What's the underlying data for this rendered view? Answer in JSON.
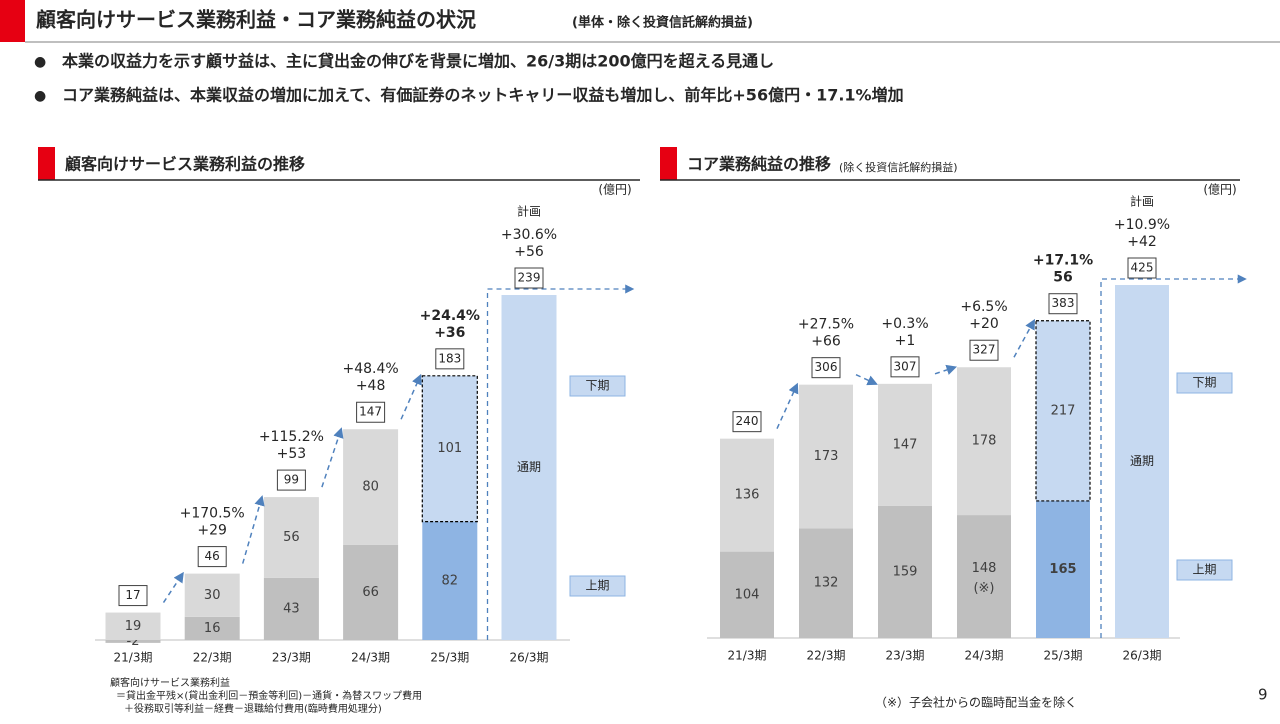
{
  "header": {
    "title": "顧客向けサービス業務利益・コア業務純益の状況",
    "subtitle": "(単体・除く投資信託解約損益)"
  },
  "bullets": [
    "本業の収益力を示す顧サ益は、主に貸出金の伸びを背景に増加、26/3期は200億円を超える見通し",
    "コア業務純益は、本業収益の増加に加えて、有価証券のネットキャリー収益も増加し、前年比+56億円・17.1%増加"
  ],
  "chart_data": [
    {
      "type": "bar",
      "stacked": true,
      "title": "顧客向けサービス業務利益の推移",
      "unit": "(億円)",
      "categories": [
        "21/3期",
        "22/3期",
        "23/3期",
        "24/3期",
        "25/3期",
        "26/3期"
      ],
      "series": [
        {
          "name": "上期",
          "values": [
            -2,
            16,
            43,
            66,
            82,
            null
          ],
          "colors": [
            "#bfbfbf",
            "#bfbfbf",
            "#bfbfbf",
            "#bfbfbf",
            "#8eb4e3",
            null
          ]
        },
        {
          "name": "下期",
          "values": [
            19,
            30,
            56,
            80,
            101,
            null
          ],
          "colors": [
            "#d9d9d9",
            "#d9d9d9",
            "#d9d9d9",
            "#d9d9d9",
            "#c6d9f1",
            null
          ]
        },
        {
          "name": "通期",
          "values": [
            null,
            null,
            null,
            null,
            null,
            239
          ],
          "colors": [
            null,
            null,
            null,
            null,
            null,
            "#c6d9f1"
          ]
        }
      ],
      "totals": [
        17,
        46,
        99,
        147,
        183,
        239
      ],
      "growth": [
        null,
        "+170.5%",
        "+115.2%",
        "+48.4%",
        "+24.4%",
        "+30.6%"
      ],
      "change": [
        null,
        "+29",
        "+53",
        "+48",
        "+36",
        "+56"
      ],
      "plan_label": "計画",
      "highlight_category": "25/3期",
      "highlight_color": "#2e75b6"
    },
    {
      "type": "bar",
      "stacked": true,
      "title": "コア業務純益の推移",
      "subtitle": "(除く投資信託解約損益)",
      "unit": "(億円)",
      "categories": [
        "21/3期",
        "22/3期",
        "23/3期",
        "24/3期",
        "25/3期",
        "26/3期"
      ],
      "series": [
        {
          "name": "上期",
          "values": [
            104,
            132,
            159,
            148,
            165,
            null
          ],
          "colors": [
            "#bfbfbf",
            "#bfbfbf",
            "#bfbfbf",
            "#bfbfbf",
            "#8eb4e3",
            null
          ],
          "value_notes": [
            null,
            null,
            null,
            "(※)",
            null,
            null
          ]
        },
        {
          "name": "下期",
          "values": [
            136,
            173,
            147,
            178,
            217,
            null
          ],
          "colors": [
            "#d9d9d9",
            "#d9d9d9",
            "#d9d9d9",
            "#d9d9d9",
            "#c6d9f1",
            null
          ]
        },
        {
          "name": "通期",
          "values": [
            null,
            null,
            null,
            null,
            null,
            425
          ],
          "colors": [
            null,
            null,
            null,
            null,
            null,
            "#c6d9f1"
          ]
        }
      ],
      "totals": [
        240,
        306,
        307,
        327,
        383,
        425
      ],
      "growth": [
        null,
        "+27.5%",
        "+0.3%",
        "+6.5%",
        "+17.1%",
        "+10.9%"
      ],
      "change": [
        null,
        "+66",
        "+1",
        "+20",
        "56",
        "+42"
      ],
      "plan_label": "計画",
      "highlight_category": "25/3期",
      "highlight_color": "#2e75b6"
    }
  ],
  "footnotes": {
    "left": [
      "顧客向けサービス業務利益",
      "＝貸出金平残×(貸出金利回－預金等利回)－通貨・為替スワップ費用",
      "＋役務取引等利益－経費－退職給付費用(臨時費用処理分)"
    ],
    "right": "（※）子会社からの臨時配当金を除く",
    "page": "9"
  }
}
